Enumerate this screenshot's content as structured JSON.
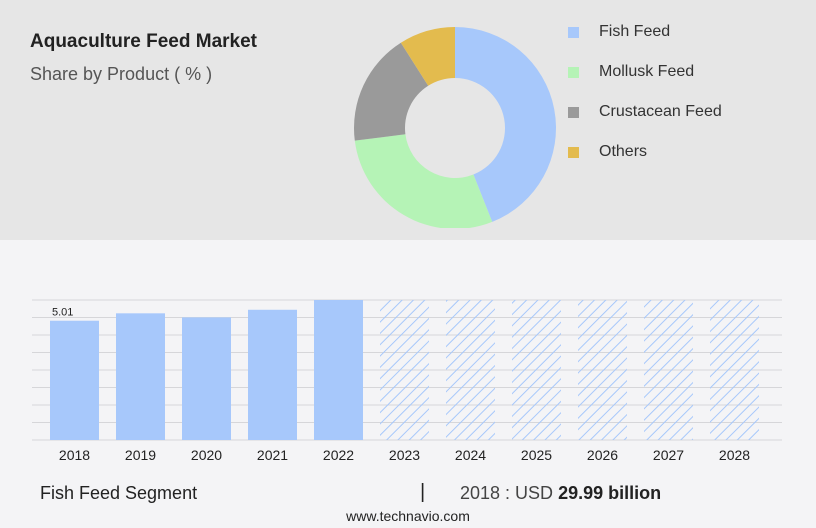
{
  "header": {
    "title": "Aquaculture Feed Market",
    "subtitle": "Share by Product ( % )"
  },
  "colors": {
    "fish_feed": "#a7c8fb",
    "mollusk_feed": "#b5f3b6",
    "crustacean_feed": "#9a9a9a",
    "others": "#e3bb4e",
    "bar": "#a7c8fb",
    "forecast_hatch": "#a7c8fb"
  },
  "chart_data": [
    {
      "type": "pie",
      "variant": "donut",
      "categories": [
        "Fish Feed",
        "Mollusk Feed",
        "Crustacean Feed",
        "Others"
      ],
      "values": [
        44,
        29,
        18,
        9
      ],
      "legend": "right"
    },
    {
      "type": "bar",
      "categories": [
        "2018",
        "2019",
        "2020",
        "2021",
        "2022",
        "2023",
        "2024",
        "2025",
        "2026",
        "2027",
        "2028"
      ],
      "values": [
        5.01,
        5.32,
        5.15,
        5.47,
        5.88,
        null,
        null,
        null,
        null,
        null,
        null
      ],
      "forecast_categories": [
        "2023",
        "2024",
        "2025",
        "2026",
        "2027",
        "2028"
      ],
      "data_labels": [
        "5.01",
        "",
        "",
        "",
        "",
        "",
        "",
        "",
        "",
        "",
        ""
      ],
      "ylim": [
        0,
        5.88
      ],
      "grid": true
    }
  ],
  "footer": {
    "segment": "Fish Feed Segment",
    "separator": "|",
    "value_prefix": "2018 : USD",
    "value_bold": "29.99 billion",
    "source": "www.technavio.com"
  }
}
